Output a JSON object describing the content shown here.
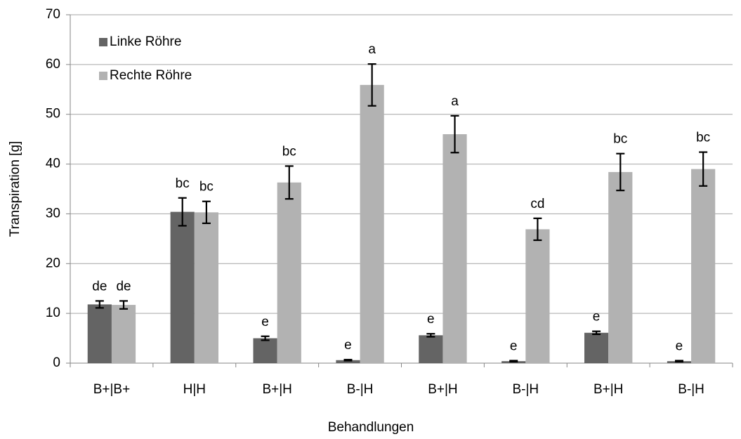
{
  "chart_data": {
    "type": "bar",
    "xlabel": "Behandlungen",
    "ylabel": "Transpiration [g]",
    "categories": [
      "B+|B+",
      "H|H",
      "B+|H",
      "B-|H",
      "B+|H",
      "B-|H",
      "B+|H",
      "B-|H"
    ],
    "series": [
      {
        "name": "Linke Röhre",
        "color": "#646464",
        "values": [
          11.8,
          30.4,
          5.0,
          0.6,
          5.6,
          0.4,
          6.1,
          0.4
        ],
        "errors": [
          0.7,
          2.8,
          0.4,
          0.1,
          0.3,
          0.1,
          0.3,
          0.1
        ],
        "labels": [
          "de",
          "bc",
          "e",
          "e",
          "e",
          "e",
          "e",
          "e"
        ]
      },
      {
        "name": "Rechte Röhre",
        "color": "#b2b2b2",
        "values": [
          11.7,
          30.3,
          36.3,
          55.9,
          46.0,
          26.9,
          38.4,
          39.0
        ],
        "errors": [
          0.8,
          2.2,
          3.3,
          4.2,
          3.7,
          2.2,
          3.7,
          3.4
        ],
        "labels": [
          "de",
          "bc",
          "bc",
          "a",
          "a",
          "cd",
          "bc",
          "bc"
        ]
      }
    ],
    "ylim": [
      0,
      70
    ],
    "yticks": [
      0,
      10,
      20,
      30,
      40,
      50,
      60,
      70
    ],
    "grid": true,
    "legend": "upper left"
  }
}
